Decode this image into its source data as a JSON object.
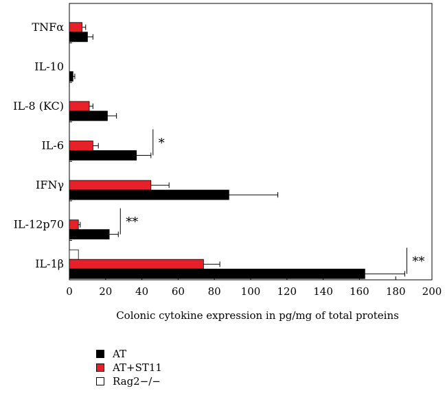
{
  "chart_data": {
    "type": "bar",
    "orientation": "horizontal",
    "categories": [
      "TNFα",
      "IL-10",
      "IL-8 (KC)",
      "IL-6",
      "IFNγ",
      "IL-12p70",
      "IL-1β"
    ],
    "series": [
      {
        "name": "AT",
        "color": "#000000",
        "values": [
          10,
          2,
          21,
          37,
          88,
          22,
          163
        ],
        "errors": [
          3,
          1,
          5,
          8,
          27,
          5,
          22
        ]
      },
      {
        "name": "AT+ST11",
        "color": "#e8202a",
        "values": [
          7,
          0,
          11,
          13,
          45,
          5,
          74
        ],
        "errors": [
          2,
          0,
          2,
          3,
          10,
          1,
          9
        ]
      },
      {
        "name": "Rag2−/−",
        "color": "#ffffff",
        "values": [
          0,
          0,
          0,
          0,
          0,
          0,
          5
        ],
        "errors": [
          0,
          0,
          0,
          0,
          0,
          0,
          0
        ]
      }
    ],
    "xlim": [
      0,
      200
    ],
    "xticks": [
      0,
      20,
      40,
      60,
      80,
      100,
      120,
      140,
      160,
      180,
      200
    ],
    "xlabel": "Colonic cytokine expression in pg/mg of total proteins",
    "ylabel": "",
    "title": "",
    "significance": [
      {
        "category": "IL-6",
        "label": "*"
      },
      {
        "category": "IL-12p70",
        "label": "**"
      },
      {
        "category": "IL-1β",
        "label": "**"
      }
    ],
    "legend_position": "bottom-left",
    "grid": false
  }
}
